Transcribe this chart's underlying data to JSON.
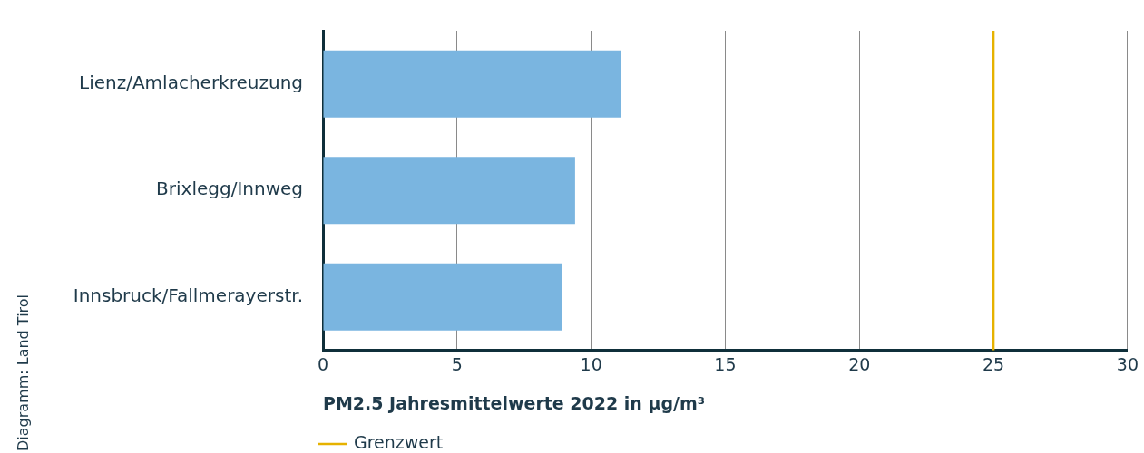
{
  "chart_data": {
    "type": "bar",
    "orientation": "horizontal",
    "categories": [
      "Lienz/Amlacherkreuzung",
      "Brixlegg/Innweg",
      "Innsbruck/Fallmerayerstr."
    ],
    "values": [
      11.1,
      9.4,
      8.9
    ],
    "color": "#7ab5e0",
    "xlabel": "PM2.5 Jahresmittelwerte 2022 in µg/m³",
    "xlim": [
      0,
      30
    ],
    "xticks": [
      0,
      5,
      10,
      15,
      20,
      25,
      30
    ],
    "grid": "x",
    "ref_lines": [
      {
        "axis": "x",
        "value": 25,
        "label": "Grenzwert",
        "color": "#e6b200"
      }
    ],
    "legend": "bottom left",
    "annotations": [
      "Diagramm: Land Tirol"
    ]
  }
}
